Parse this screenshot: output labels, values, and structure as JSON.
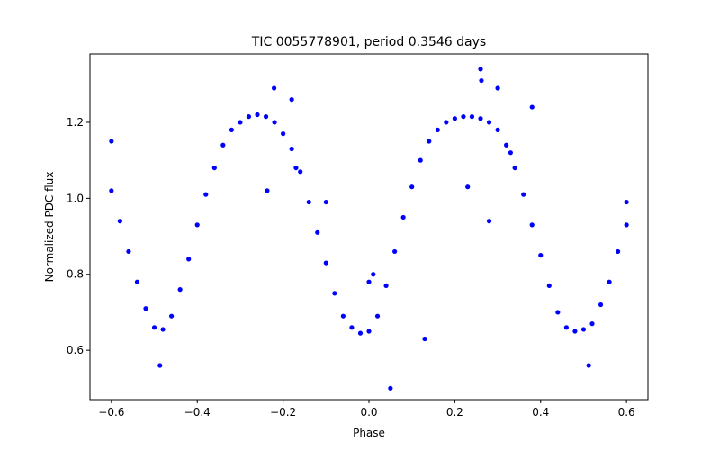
{
  "chart_data": {
    "type": "scatter",
    "title": "TIC 0055778901, period 0.3546 days",
    "xlabel": "Phase",
    "ylabel": "Normalized PDC flux",
    "xlim": [
      -0.65,
      0.65
    ],
    "ylim": [
      0.47,
      1.38
    ],
    "xticks": [
      -0.6,
      -0.4,
      -0.2,
      0.0,
      0.2,
      0.4,
      0.6
    ],
    "xtick_labels": [
      "−0.6",
      "−0.4",
      "−0.2",
      "0.0",
      "0.2",
      "0.4",
      "0.6"
    ],
    "yticks": [
      0.6,
      0.8,
      1.0,
      1.2
    ],
    "ytick_labels": [
      "0.6",
      "0.8",
      "1.0",
      "1.2"
    ],
    "grid": false,
    "legend": null,
    "marker_color": "#0000ff",
    "series": [
      {
        "name": "",
        "x": [
          -0.6,
          -0.58,
          -0.56,
          -0.54,
          -0.52,
          -0.5,
          -0.48,
          -0.46,
          -0.44,
          -0.42,
          -0.4,
          -0.38,
          -0.36,
          -0.34,
          -0.32,
          -0.3,
          -0.28,
          -0.26,
          -0.24,
          -0.22,
          -0.2,
          -0.18,
          -0.16,
          -0.14,
          -0.12,
          -0.1,
          -0.08,
          -0.06,
          -0.04,
          -0.02,
          0.0,
          0.02,
          0.04,
          0.06,
          0.08,
          0.1,
          0.12,
          0.14,
          0.16,
          0.18,
          0.2,
          0.22,
          0.24,
          0.26,
          0.28,
          0.3,
          0.32,
          0.34,
          0.36,
          0.38,
          0.4,
          0.42,
          0.44,
          0.46,
          0.48,
          0.5,
          0.52,
          0.54,
          0.56,
          0.58,
          0.6
        ],
        "y": [
          1.02,
          0.94,
          0.86,
          0.78,
          0.71,
          0.66,
          0.655,
          0.69,
          0.76,
          0.84,
          0.93,
          1.01,
          1.08,
          1.14,
          1.18,
          1.2,
          1.215,
          1.22,
          1.215,
          1.2,
          1.17,
          1.13,
          1.07,
          0.99,
          0.91,
          0.83,
          0.75,
          0.69,
          0.66,
          0.645,
          0.65,
          0.69,
          0.77,
          0.86,
          0.95,
          1.03,
          1.1,
          1.15,
          1.18,
          1.2,
          1.21,
          1.215,
          1.215,
          1.21,
          1.2,
          1.18,
          1.14,
          1.08,
          1.01,
          0.93,
          0.85,
          0.77,
          0.7,
          0.66,
          0.65,
          0.655,
          0.67,
          0.72,
          0.78,
          0.86,
          0.93
        ]
      }
    ],
    "outliers": {
      "x": [
        -0.6,
        -0.487,
        -0.237,
        -0.221,
        -0.18,
        -0.17,
        -0.1,
        0.0,
        0.01,
        0.05,
        0.13,
        0.23,
        0.26,
        0.262,
        0.28,
        0.3,
        0.33,
        0.38,
        0.512,
        0.6
      ],
      "y": [
        1.15,
        0.56,
        1.02,
        1.29,
        1.26,
        1.08,
        0.99,
        0.78,
        0.8,
        0.5,
        0.63,
        1.03,
        1.34,
        1.31,
        0.94,
        1.29,
        1.12,
        1.24,
        0.56,
        0.99
      ]
    }
  }
}
